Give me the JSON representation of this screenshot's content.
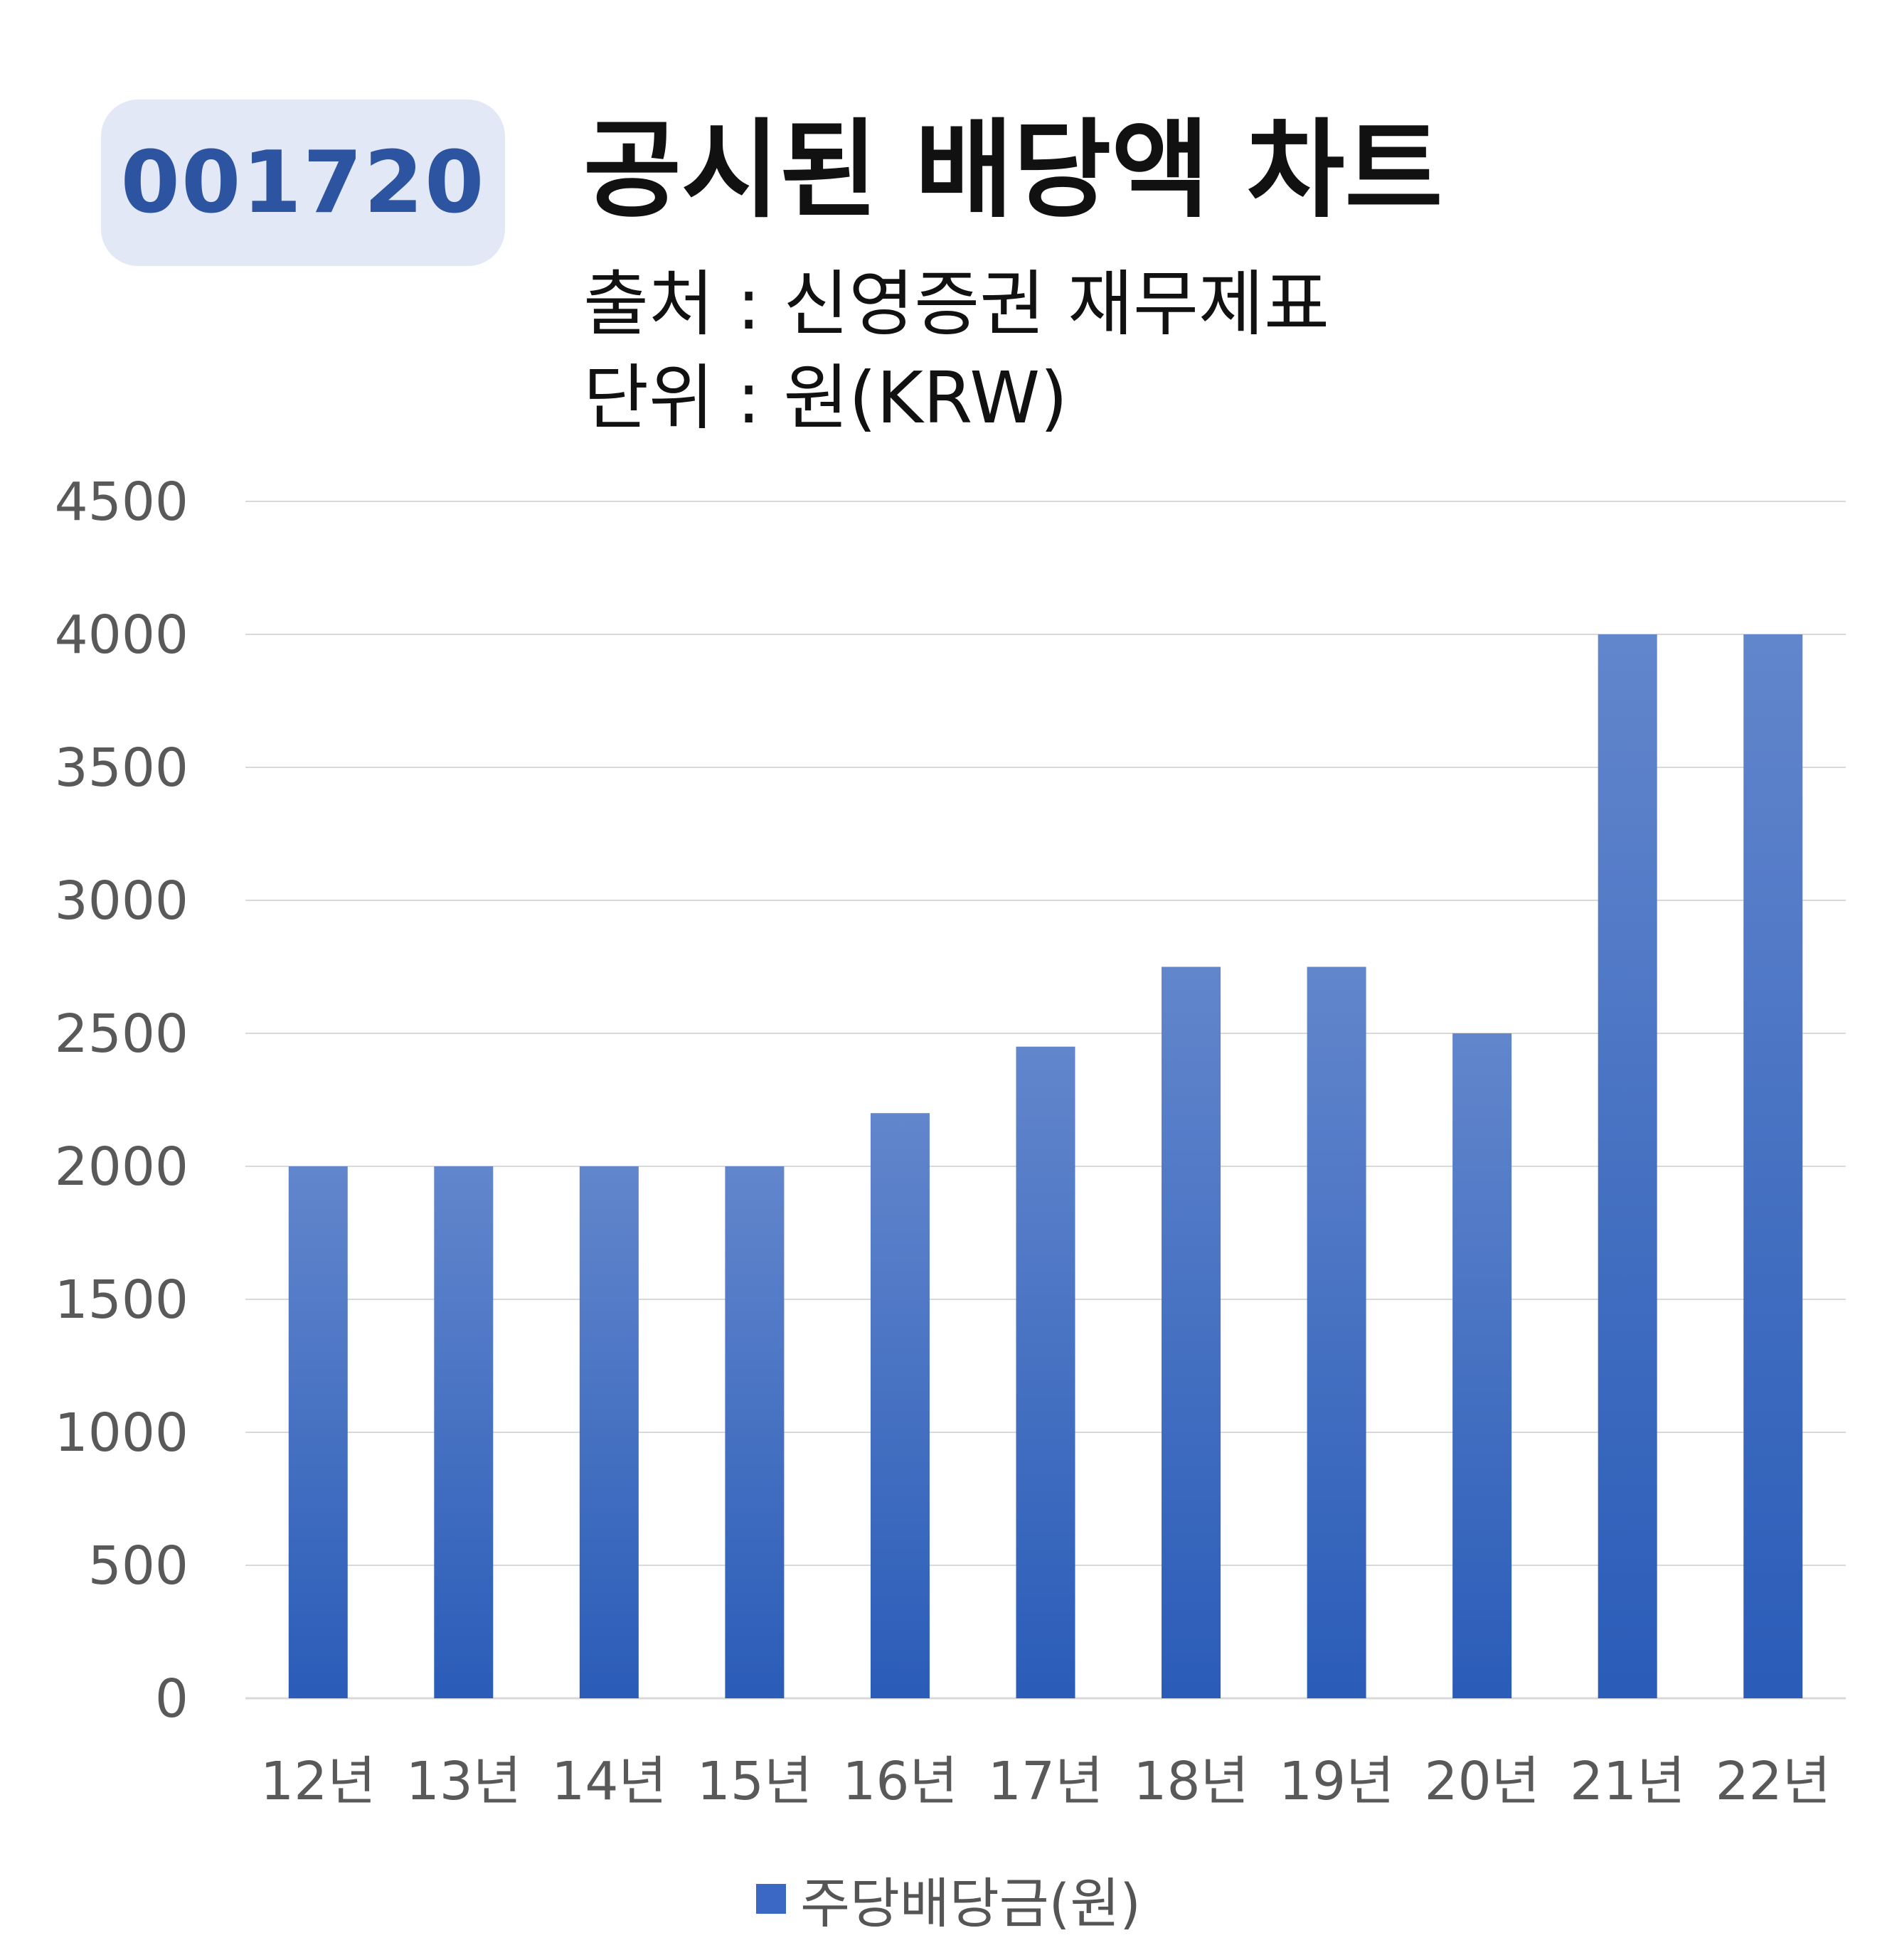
{
  "header": {
    "ticker": "001720",
    "title": "공시된 배당액 차트",
    "source": "출처 : 신영증권 재무제표",
    "unit": "단위 : 원(KRW)"
  },
  "colors": {
    "bar_top": "#6286cc",
    "bar_bottom": "#2a5cb8",
    "badge_bg": "#e2e8f5",
    "badge_text": "#2d54a0",
    "grid": "#d9d9d9",
    "tick_text": "#595959"
  },
  "chart_data": {
    "type": "bar",
    "categories": [
      "12년",
      "13년",
      "14년",
      "15년",
      "16년",
      "17년",
      "18년",
      "19년",
      "20년",
      "21년",
      "22년"
    ],
    "series": [
      {
        "name": "주당배당금(원)",
        "values": [
          2000,
          2000,
          2000,
          2000,
          2200,
          2450,
          2750,
          2750,
          2500,
          4000,
          4000
        ]
      }
    ],
    "ylim": [
      0,
      4500
    ],
    "yticks": [
      0,
      500,
      1000,
      1500,
      2000,
      2500,
      3000,
      3500,
      4000,
      4500
    ],
    "grid": true,
    "legend": "bottom-center"
  }
}
